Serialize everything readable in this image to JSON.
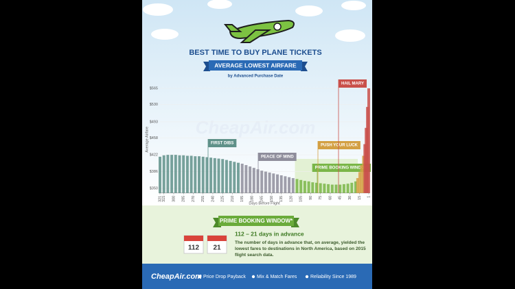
{
  "header": {
    "title": "BEST TIME TO BUY PLANE TICKETS",
    "ribbon": "AVERAGE LOWEST AIRFARE",
    "subtitle": "by Advanced Purchase Date"
  },
  "chart_data": {
    "type": "bar",
    "y_label": "Average Airfare",
    "x_label": "Days Before Flight",
    "watermark": "CheapAir.com",
    "xlim": [
      321,
      1
    ],
    "xticks": [
      321,
      315,
      300,
      285,
      270,
      255,
      240,
      225,
      210,
      195,
      180,
      165,
      150,
      135,
      120,
      105,
      90,
      75,
      60,
      45,
      30,
      15,
      1
    ],
    "ylim": [
      340,
      570
    ],
    "yticks": [
      {
        "value": 350,
        "label": "$350"
      },
      {
        "value": 386,
        "label": "$386"
      },
      {
        "value": 422,
        "label": "$422"
      },
      {
        "value": 458,
        "label": "$458"
      },
      {
        "value": 493,
        "label": "$493"
      },
      {
        "value": 530,
        "label": "$530"
      },
      {
        "value": 565,
        "label": "$565"
      }
    ],
    "grid": true,
    "series": [
      {
        "name": "FIRST DIBS",
        "color": "#5f9189",
        "x": [
          321,
          315,
          309,
          303,
          297,
          291,
          285,
          279,
          273,
          267,
          261,
          255,
          249,
          243,
          237,
          231,
          225,
          219,
          213,
          207,
          201
        ],
        "values": [
          418,
          421,
          422,
          422,
          422,
          421,
          421,
          420,
          420,
          419,
          419,
          418,
          417,
          416,
          415,
          414,
          413,
          411,
          409,
          407,
          405
        ]
      },
      {
        "name": "PEACE OF MIND",
        "color": "#8e8d9b",
        "x": [
          195,
          189,
          183,
          177,
          171,
          165,
          159,
          153,
          147,
          141,
          135,
          129,
          123,
          117
        ],
        "values": [
          403,
          400,
          397,
          394,
          391,
          388,
          386,
          384,
          382,
          380,
          378,
          376,
          374,
          372
        ]
      },
      {
        "name": "PRIME BOOKING WINDOW",
        "color": "#7ab648",
        "x": [
          111,
          105,
          99,
          93,
          87,
          81,
          75,
          69,
          63,
          57,
          51,
          45,
          39,
          33,
          27,
          21
        ],
        "values": [
          370,
          368,
          366,
          365,
          363,
          362,
          361,
          360,
          359,
          358,
          358,
          358,
          359,
          360,
          362,
          365
        ]
      },
      {
        "name": "PUSH YOUR LUCK",
        "color": "#d3a043",
        "x": [
          18,
          15,
          12,
          9
        ],
        "values": [
          372,
          385,
          400,
          420
        ]
      },
      {
        "name": "HAIL MARY",
        "color": "#c9504a",
        "x": [
          7,
          5,
          3,
          1
        ],
        "values": [
          445,
          480,
          525,
          565
        ]
      }
    ]
  },
  "prime_window": {
    "heading": "PRIME BOOKING WINDOW*",
    "calendar_start": "112",
    "calendar_end": "21",
    "range": "112 – 21 days in advance",
    "description": "The number of days in advance that, on average, yielded the lowest fares to destinations in North America, based on 2015 flight search data."
  },
  "footer": {
    "logo": "CheapAir.com",
    "features": [
      "Price Drop Payback",
      "Mix & Match Fares",
      "Reliability Since 1989"
    ]
  }
}
